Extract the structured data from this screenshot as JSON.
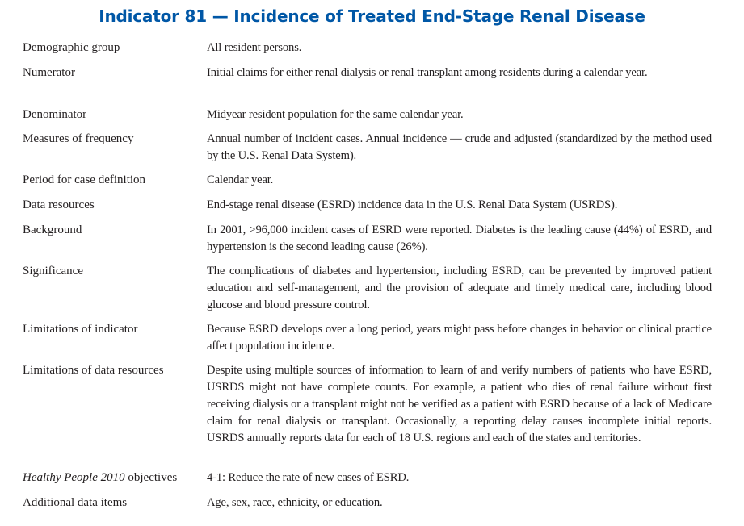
{
  "title": "Indicator 81 — Incidence of Treated End-Stage Renal Disease",
  "rows": [
    {
      "label": "Demographic group",
      "value": "All resident persons."
    },
    {
      "label": "Numerator",
      "value": "Initial claims for either renal dialysis or renal transplant among residents during a calendar year."
    },
    {
      "label": "Denominator",
      "value": "Midyear resident population for the same calendar year."
    },
    {
      "label": "Measures of frequency",
      "value": "Annual number of incident cases. Annual incidence — crude and adjusted (standardized by the method used by the U.S. Renal Data System)."
    },
    {
      "label": "Period for case definition",
      "value": "Calendar year."
    },
    {
      "label": "Data resources",
      "value": "End-stage renal disease (ESRD) incidence data in the U.S. Renal Data System (USRDS)."
    },
    {
      "label": "Background",
      "value": "In 2001, >96,000 incident cases of ESRD were reported. Diabetes is the leading cause (44%) of ESRD, and hypertension is the second leading cause (26%)."
    },
    {
      "label": "Significance",
      "value": "The complications of diabetes and hypertension, including ESRD, can be prevented by improved patient education and self-management, and the provision of adequate and timely medical care, including blood glucose and blood pressure control."
    },
    {
      "label": "Limitations of indicator",
      "value": "Because ESRD develops over a long period, years might pass before changes in behavior or clinical practice affect population incidence."
    },
    {
      "label": "Limitations of data resources",
      "value": "Despite using multiple sources of information to learn of and verify numbers of patients who have ESRD, USRDS might not have complete counts. For example, a patient who dies of renal failure without first receiving dialysis or a transplant might not be verified as a patient with ESRD because of a lack of Medicare claim for renal dialysis or transplant. Occasionally, a reporting delay causes incomplete initial reports. USRDS annually reports data for each of 18 U.S. regions and each of the states and territories."
    },
    {
      "label_italic": "Healthy People 2010",
      "label": " objectives",
      "value": "4-1: Reduce the rate of new cases of ESRD."
    },
    {
      "label": "Additional data items",
      "value": "Age, sex, race, ethnicity, or education."
    }
  ]
}
